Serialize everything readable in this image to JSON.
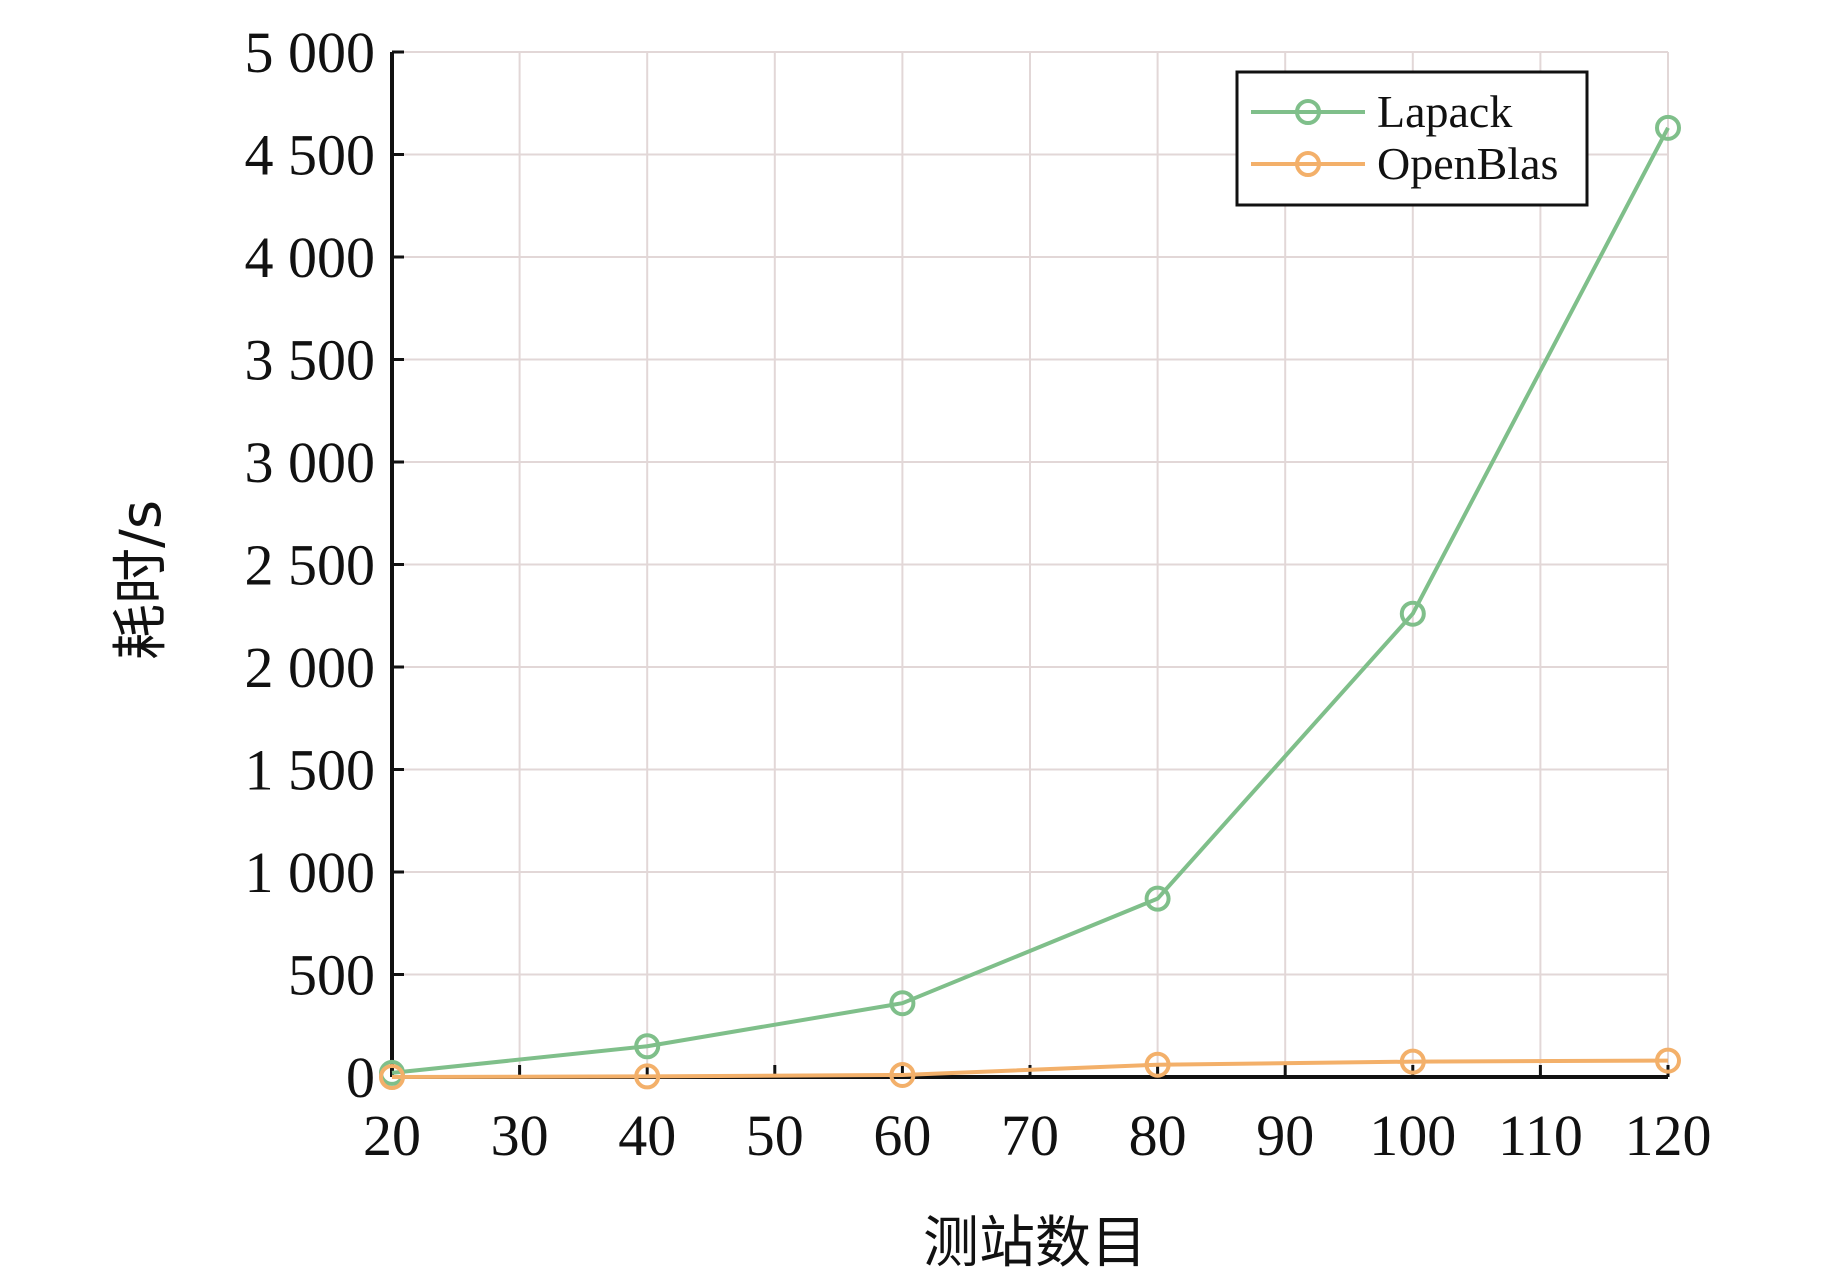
{
  "chart_data": {
    "type": "line",
    "title": "",
    "xlabel": "测站数目",
    "ylabel": "耗时/s",
    "x": [
      20,
      40,
      60,
      80,
      100,
      120
    ],
    "series": [
      {
        "name": "Lapack",
        "color": "#7fbf8a",
        "values": [
          20,
          150,
          360,
          870,
          2260,
          4630
        ]
      },
      {
        "name": "OpenBlas",
        "color": "#f3b06a",
        "values": [
          0,
          3,
          10,
          60,
          75,
          80
        ]
      }
    ],
    "xlim": [
      20,
      120
    ],
    "ylim": [
      0,
      5000
    ],
    "xticks": [
      20,
      30,
      40,
      50,
      60,
      70,
      80,
      90,
      100,
      110,
      120
    ],
    "xtick_labels": [
      "20",
      "30",
      "40",
      "50",
      "60",
      "70",
      "80",
      "90",
      "100",
      "110",
      "120"
    ],
    "yticks": [
      0,
      500,
      1000,
      1500,
      2000,
      2500,
      3000,
      3500,
      4000,
      4500,
      5000
    ],
    "ytick_labels": [
      "0",
      "500",
      "1 000",
      "1 500",
      "2 000",
      "2 500",
      "3 000",
      "3 500",
      "4 000",
      "4 500",
      "5 000"
    ],
    "grid": true,
    "legend_position": "top-right"
  }
}
